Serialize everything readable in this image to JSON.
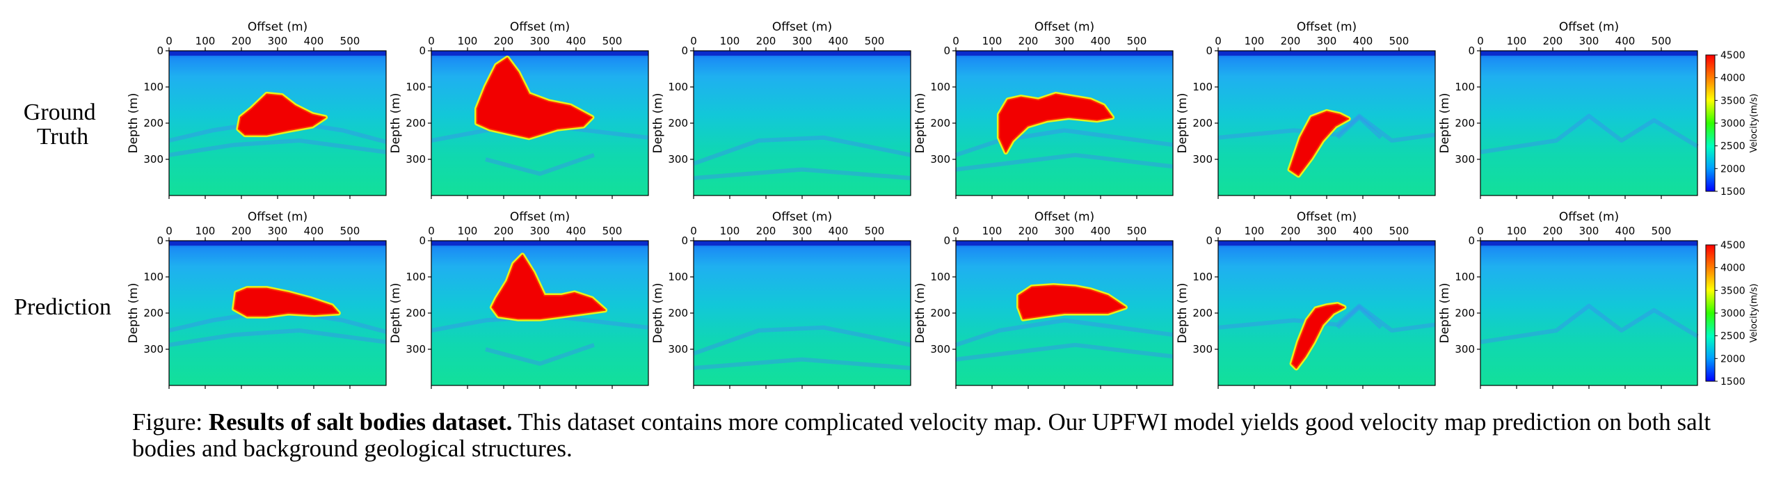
{
  "figure": {
    "row_labels": [
      [
        "Ground",
        "Truth"
      ],
      [
        "Prediction"
      ]
    ],
    "x_axis_label": "Offset (m)",
    "y_axis_label": "Depth (m)",
    "x_ticks": [
      0,
      100,
      200,
      300,
      400,
      500
    ],
    "y_ticks": [
      0,
      100,
      200,
      300
    ],
    "x_range_m": [
      0,
      600
    ],
    "y_range_m": [
      0,
      400
    ],
    "colorbar": {
      "label": "Velocity(m/s)",
      "ticks": [
        1500,
        2000,
        2500,
        3000,
        3500,
        4000,
        4500
      ],
      "range": [
        1500,
        4500
      ],
      "colormap": [
        "#0000ff",
        "#00a0ff",
        "#00ffc0",
        "#30ff00",
        "#ffff00",
        "#ff8000",
        "#ff0000"
      ]
    }
  },
  "chart_data": {
    "type": "heatmap",
    "panel_count": 12,
    "grid": "2 rows x 6 columns",
    "rows": [
      "Ground Truth",
      "Prediction"
    ]
  },
  "caption": {
    "prefix": "Figure: ",
    "bold": "Results of salt bodies dataset.",
    "text": " This dataset contains more complicated velocity map. Our UPFWI model yields good velocity map prediction on both salt bodies and background geological structures."
  }
}
